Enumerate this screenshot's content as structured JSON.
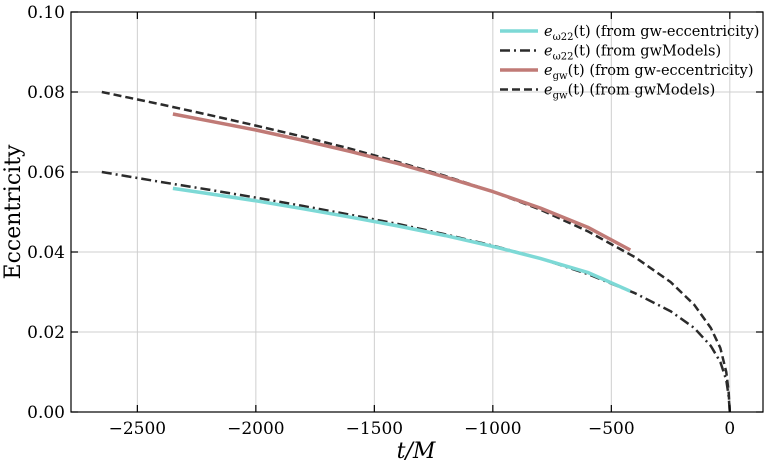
{
  "chart_data": {
    "type": "line",
    "xlabel": "t/M",
    "ylabel": "Eccentricity",
    "xlim": [
      -2780,
      140
    ],
    "ylim": [
      0.0,
      0.1
    ],
    "xticks": [
      -2500,
      -2000,
      -1500,
      -1000,
      -500,
      0
    ],
    "xtick_labels": [
      "−2500",
      "−2000",
      "−1500",
      "−1000",
      "−500",
      "0"
    ],
    "yticks": [
      0.0,
      0.02,
      0.04,
      0.06,
      0.08,
      0.1
    ],
    "ytick_labels": [
      "0.00",
      "0.02",
      "0.04",
      "0.06",
      "0.08",
      "0.10"
    ],
    "grid": true,
    "legend_position": "top-right",
    "series": [
      {
        "name": "e_ω22(t) (from gw-eccentricity)",
        "legend_main": "e",
        "legend_sub": "ω22",
        "legend_rest": "(t) (from gw-eccentricity)",
        "color": "#7dd9d6",
        "dash": "solid",
        "width": 3.5,
        "x": [
          -2350,
          -2200,
          -2000,
          -1800,
          -1600,
          -1400,
          -1200,
          -1000,
          -800,
          -600,
          -420
        ],
        "y": [
          0.0559,
          0.0546,
          0.0528,
          0.0508,
          0.0487,
          0.0465,
          0.0441,
          0.0414,
          0.0384,
          0.0349,
          0.0302
        ]
      },
      {
        "name": "e_ω22(t) (from gwModels)",
        "legend_main": "e",
        "legend_sub": "ω22",
        "legend_rest": "(t) (from gwModels)",
        "color": "#2b2b2b",
        "dash": "dashdot",
        "width": 2.5,
        "x": [
          -2650,
          -2400,
          -2200,
          -2000,
          -1800,
          -1600,
          -1400,
          -1200,
          -1000,
          -800,
          -600,
          -400,
          -250,
          -150,
          -80,
          -40,
          -15,
          -5,
          0
        ],
        "y": [
          0.06,
          0.0575,
          0.0556,
          0.0536,
          0.0515,
          0.0493,
          0.047,
          0.0444,
          0.0416,
          0.0384,
          0.0345,
          0.0297,
          0.0252,
          0.021,
          0.0165,
          0.0125,
          0.008,
          0.004,
          0.0
        ]
      },
      {
        "name": "e_gw(t) (from gw-eccentricity)",
        "legend_main": "e",
        "legend_sub": "gw",
        "legend_rest": "(t) (from gw-eccentricity)",
        "color": "#c07a76",
        "dash": "solid",
        "width": 3.5,
        "x": [
          -2350,
          -2200,
          -2000,
          -1800,
          -1600,
          -1400,
          -1200,
          -1000,
          -800,
          -600,
          -420
        ],
        "y": [
          0.0745,
          0.0728,
          0.0705,
          0.0679,
          0.0651,
          0.0621,
          0.0587,
          0.0551,
          0.051,
          0.0462,
          0.0405
        ]
      },
      {
        "name": "e_gw(t) (from gwModels)",
        "legend_main": "e",
        "legend_sub": "gw",
        "legend_rest": "(t) (from gwModels)",
        "color": "#2b2b2b",
        "dash": "dashed",
        "width": 2.5,
        "x": [
          -2650,
          -2400,
          -2200,
          -2000,
          -1800,
          -1600,
          -1400,
          -1200,
          -1000,
          -800,
          -600,
          -400,
          -250,
          -150,
          -80,
          -40,
          -15,
          -5,
          0
        ],
        "y": [
          0.08,
          0.0769,
          0.0743,
          0.0716,
          0.0688,
          0.0658,
          0.0625,
          0.059,
          0.0551,
          0.0506,
          0.0452,
          0.0387,
          0.0325,
          0.0268,
          0.021,
          0.016,
          0.01,
          0.005,
          0.0
        ]
      }
    ]
  }
}
